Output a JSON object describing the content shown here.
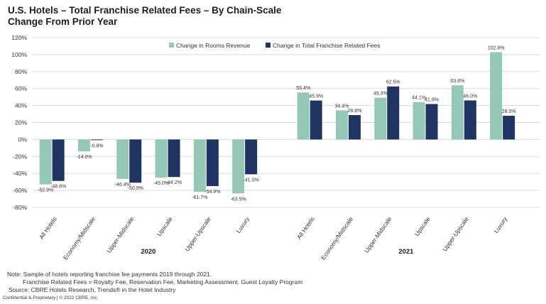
{
  "title": "U.S. Hotels – Total Franchise Related Fees – By Chain-Scale",
  "subtitle": "Change From Prior Year",
  "notes": {
    "note1": "Note:  Sample of hotels reporting franchise fee payments 2019 through 2021.",
    "note2": "Franchise Related Fees = Royalty Fee, Reservation Fee, Marketing Assessment, Guest Loyalty Program",
    "source": "Source: CBRE Hotels Research, Trends® in the Hotel Industry"
  },
  "legal": "Confidential & Proprietary | © 2022 CBRE, Inc.",
  "colors": {
    "rooms": "#96c8b8",
    "fees": "#1f3461",
    "grid": "#d9d9d9",
    "text": "#333333"
  },
  "chart_data": {
    "type": "bar",
    "ylim": [
      -80,
      120
    ],
    "yticks": [
      -80,
      -60,
      -40,
      -20,
      0,
      20,
      40,
      60,
      80,
      100,
      120
    ],
    "ytick_labels": [
      "-80%",
      "-60%",
      "-40%",
      "-20%",
      "0%",
      "20%",
      "40%",
      "60%",
      "80%",
      "100%",
      "120%"
    ],
    "legend_position": "top-center",
    "groups": [
      {
        "label": "2020",
        "categories": [
          "All Hotels",
          "Economy/Midscale",
          "Upper-Midscale",
          "Upscale",
          "Upper-Upscale",
          "Luxury"
        ],
        "series": [
          {
            "name": "Change in Rooms Revenue",
            "values": [
              -52.9,
              -14.0,
              -46.4,
              -45.0,
              -61.7,
              -63.5
            ],
            "labels": [
              "-52.9%",
              "-14.0%",
              "-46.4%",
              "-45.0%",
              "-61.7%",
              "-63.5%"
            ]
          },
          {
            "name": "Change in Total Franchise Related Fees",
            "values": [
              -48.8,
              -0.8,
              -50.9,
              -44.2,
              -54.9,
              -41.0
            ],
            "labels": [
              "-48.8%",
              "-0.8%",
              "-50.9%",
              "-44.2%",
              "-54.9%",
              "-41.0%"
            ]
          }
        ]
      },
      {
        "label": "2021",
        "categories": [
          "All Hotels",
          "Economy/Midscale",
          "Upper-Midscale",
          "Upscale",
          "Upper-Upscale",
          "Luxury"
        ],
        "series": [
          {
            "name": "Change in Rooms Revenue",
            "values": [
              55.4,
              34.4,
              49.3,
              44.1,
              63.8,
              102.9
            ],
            "labels": [
              "55.4%",
              "34.4%",
              "49.3%",
              "44.1%",
              "63.8%",
              "102.9%"
            ]
          },
          {
            "name": "Change in Total Franchise Related Fees",
            "values": [
              45.9,
              28.8,
              62.5,
              41.8,
              46.0,
              28.0
            ],
            "labels": [
              "45.9%",
              "28.8%",
              "62.5%",
              "41.8%",
              "46.0%",
              "28.0%"
            ]
          }
        ]
      }
    ]
  }
}
